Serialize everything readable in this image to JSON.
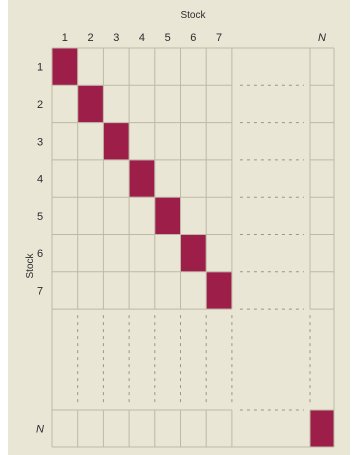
{
  "title_top": "Stock",
  "title_side": "Stock",
  "column_labels": [
    "1",
    "2",
    "3",
    "4",
    "5",
    "6",
    "7",
    "N"
  ],
  "row_labels": [
    "1",
    "2",
    "3",
    "4",
    "5",
    "6",
    "7",
    "N"
  ],
  "colors": {
    "panel": "#e9e6d6",
    "grid": "#bdb9a6",
    "dash": "#9a9684",
    "diagonal": "#9e1e4a",
    "text": "#2b2b2b"
  }
}
